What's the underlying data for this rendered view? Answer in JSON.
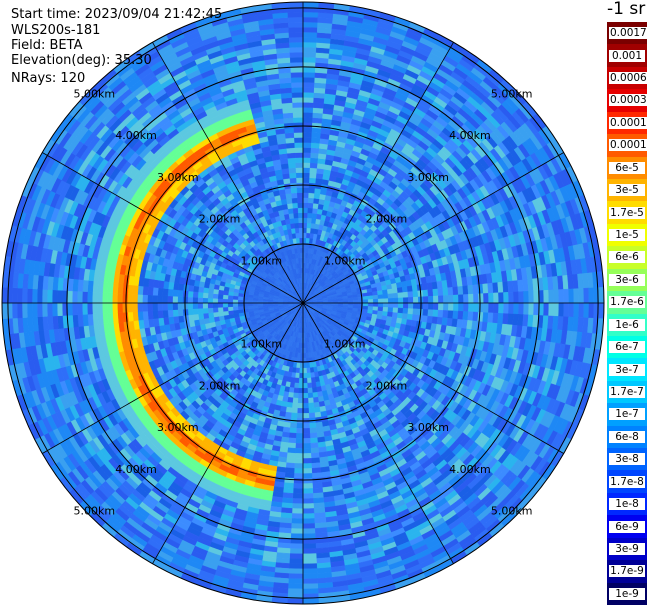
{
  "header": {
    "start_time": "Start time: 2023/09/04 21:42:45",
    "instrument": "WLS200s-181",
    "field": "Field: BETA",
    "elevation": "Elevation(deg): 35.30",
    "nrays": "NRays: 120"
  },
  "colorbar": {
    "title": "-1 sr",
    "labels": [
      "0.0017",
      "0.001",
      "0.0006",
      "0.0003",
      "0.00017",
      "0.0001",
      "6e-5",
      "3e-5",
      "1.7e-5",
      "1e-5",
      "6e-6",
      "3e-6",
      "1.7e-6",
      "1e-6",
      "6e-7",
      "3e-7",
      "1.7e-7",
      "1e-7",
      "6e-8",
      "3e-8",
      "1.7e-8",
      "1e-8",
      "6e-9",
      "3e-9",
      "1.7e-9",
      "1e-9"
    ],
    "colors": [
      "#7a0000",
      "#a00000",
      "#c80000",
      "#e60000",
      "#ff2800",
      "#ff5a00",
      "#ff8c00",
      "#ffb400",
      "#ffdc00",
      "#f0ff00",
      "#c8ff28",
      "#96ff5a",
      "#64ff96",
      "#32ffc8",
      "#00ffe6",
      "#00e6ff",
      "#00c8ff",
      "#00a0ff",
      "#0082ff",
      "#0064ff",
      "#0046ff",
      "#0028ff",
      "#0000f0",
      "#0000c8",
      "#000096",
      "#000064"
    ]
  },
  "chart_data": {
    "type": "heatmap",
    "projection": "polar PPI scan",
    "field": "BETA",
    "elevation_deg": 35.3,
    "n_rays": 120,
    "ring_labels": [
      "1.00km",
      "2.00km",
      "3.00km",
      "4.00km",
      "5.00km"
    ],
    "rings_km": [
      1,
      2,
      3,
      4,
      5
    ],
    "max_range_km": 5.1,
    "azimuth_spokes_deg": [
      0,
      30,
      60,
      90,
      120,
      150,
      180,
      210,
      240,
      270,
      300,
      330
    ],
    "background_value": "1e-8",
    "inner_zone_value": "1.7e-8",
    "features": [
      {
        "name": "enhanced-arc",
        "value": "3e-5",
        "range_km_start": 2.8,
        "range_km_end": 3.6,
        "azimuth_deg_start": 190,
        "azimuth_deg_end": 345
      }
    ]
  }
}
